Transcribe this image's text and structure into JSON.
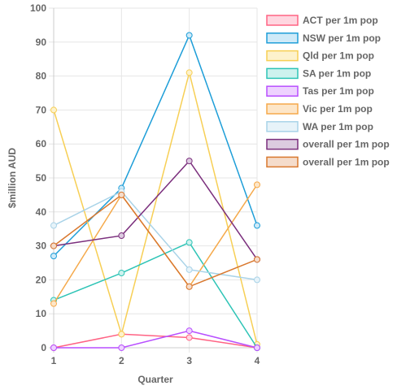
{
  "chart_data": {
    "type": "line",
    "title": "",
    "xlabel": "Quarter",
    "ylabel": "$million AUD",
    "x": [
      1,
      2,
      3,
      4
    ],
    "ylim": [
      0,
      100
    ],
    "yticks": [
      0,
      10,
      20,
      30,
      40,
      50,
      60,
      70,
      80,
      90,
      100
    ],
    "grid": true,
    "legend_position": "right",
    "series": [
      {
        "name": "ACT per 1m pop",
        "color": "#ff6384",
        "fill": "#ffd6e0",
        "values": [
          0,
          4,
          3,
          0
        ]
      },
      {
        "name": "NSW per 1m pop",
        "color": "#1e9ed8",
        "fill": "#cfeaf8",
        "values": [
          27,
          47,
          92,
          36
        ]
      },
      {
        "name": "Qld per 1m pop",
        "color": "#f7cf55",
        "fill": "#fdf2cc",
        "values": [
          70,
          4,
          81,
          1
        ]
      },
      {
        "name": "SA per 1m pop",
        "color": "#2ec4b6",
        "fill": "#cdf2ee",
        "values": [
          14,
          22,
          31,
          0
        ]
      },
      {
        "name": "Tas per 1m pop",
        "color": "#b84fff",
        "fill": "#eed2ff",
        "values": [
          0,
          0,
          5,
          0
        ]
      },
      {
        "name": "Vic per 1m pop",
        "color": "#f5a94a",
        "fill": "#fde6c8",
        "values": [
          13,
          45,
          18,
          48
        ]
      },
      {
        "name": "WA per 1m pop",
        "color": "#a9d3e8",
        "fill": "#e7f3f9",
        "values": [
          36,
          46,
          23,
          20
        ]
      },
      {
        "name": "overall per 1m pop",
        "color": "#7b2f7d",
        "fill": "#dccbe0",
        "values": [
          30,
          33,
          55,
          26
        ]
      },
      {
        "name": "overall per 1m pop",
        "color": "#d9782e",
        "fill": "#f5dccb",
        "values": [
          30,
          45,
          18,
          26
        ]
      }
    ]
  }
}
